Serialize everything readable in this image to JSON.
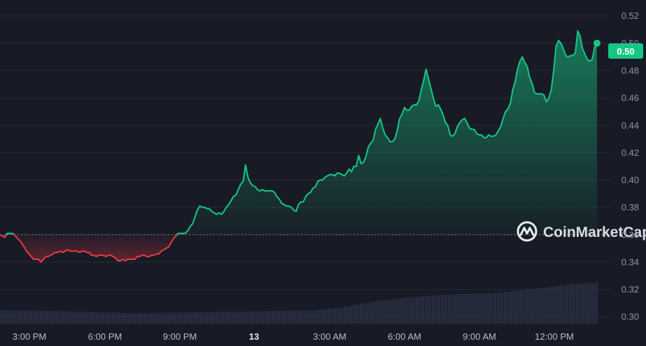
{
  "chart_data": {
    "type": "line",
    "x_ticks": [
      "3:00 PM",
      "6:00 PM",
      "9:00 PM",
      "13",
      "3:00 AM",
      "6:00 AM",
      "9:00 AM",
      "12:00 PM"
    ],
    "x_tick_bold": "13",
    "y_ticks": [
      "0.52",
      "0.50",
      "0.48",
      "0.46",
      "0.44",
      "0.42",
      "0.40",
      "0.38",
      "0.36",
      "0.34",
      "0.32",
      "0.30"
    ],
    "ylim": [
      0.295,
      0.527
    ],
    "baseline": 0.36,
    "current_price": "0.50",
    "watermark": "CoinMarketCap",
    "colors": {
      "up": "#16c784",
      "down": "#ea3943",
      "background": "#181b26",
      "grid": "#262a36",
      "volume": "#2b3346"
    },
    "series": [
      {
        "values": [
          0.36,
          0.359,
          0.358,
          0.361,
          0.361,
          0.361,
          0.36,
          0.358,
          0.356,
          0.354,
          0.351,
          0.348,
          0.346,
          0.344,
          0.342,
          0.342,
          0.342,
          0.34,
          0.342,
          0.344,
          0.344,
          0.345,
          0.346,
          0.347,
          0.347,
          0.348,
          0.347,
          0.348,
          0.349,
          0.348,
          0.348,
          0.348,
          0.348,
          0.347,
          0.348,
          0.348,
          0.347,
          0.347,
          0.345,
          0.345,
          0.344,
          0.345,
          0.345,
          0.345,
          0.344,
          0.345,
          0.345,
          0.344,
          0.343,
          0.341,
          0.341,
          0.342,
          0.341,
          0.342,
          0.342,
          0.342,
          0.342,
          0.344,
          0.344,
          0.345,
          0.345,
          0.344,
          0.344,
          0.345,
          0.345,
          0.346,
          0.346,
          0.348,
          0.349,
          0.35,
          0.351,
          0.354,
          0.357,
          0.359,
          0.361,
          0.361,
          0.361,
          0.361,
          0.363,
          0.366,
          0.368,
          0.373,
          0.378,
          0.381,
          0.38,
          0.38,
          0.379,
          0.379,
          0.377,
          0.376,
          0.375,
          0.376,
          0.375,
          0.377,
          0.38,
          0.382,
          0.385,
          0.388,
          0.389,
          0.393,
          0.397,
          0.399,
          0.411,
          0.402,
          0.398,
          0.396,
          0.395,
          0.393,
          0.392,
          0.393,
          0.392,
          0.392,
          0.392,
          0.392,
          0.391,
          0.388,
          0.386,
          0.383,
          0.382,
          0.381,
          0.381,
          0.38,
          0.378,
          0.377,
          0.382,
          0.384,
          0.384,
          0.388,
          0.39,
          0.391,
          0.394,
          0.395,
          0.399,
          0.4,
          0.4,
          0.402,
          0.403,
          0.404,
          0.404,
          0.403,
          0.405,
          0.405,
          0.404,
          0.403,
          0.405,
          0.408,
          0.406,
          0.41,
          0.41,
          0.418,
          0.412,
          0.413,
          0.417,
          0.424,
          0.427,
          0.429,
          0.437,
          0.441,
          0.445,
          0.438,
          0.433,
          0.431,
          0.428,
          0.428,
          0.43,
          0.436,
          0.445,
          0.448,
          0.453,
          0.451,
          0.451,
          0.454,
          0.455,
          0.455,
          0.458,
          0.466,
          0.473,
          0.481,
          0.474,
          0.467,
          0.46,
          0.454,
          0.455,
          0.452,
          0.448,
          0.442,
          0.44,
          0.433,
          0.432,
          0.434,
          0.439,
          0.442,
          0.444,
          0.445,
          0.442,
          0.438,
          0.437,
          0.437,
          0.434,
          0.433,
          0.433,
          0.431,
          0.431,
          0.433,
          0.432,
          0.432,
          0.433,
          0.436,
          0.439,
          0.445,
          0.45,
          0.452,
          0.456,
          0.466,
          0.472,
          0.481,
          0.487,
          0.49,
          0.486,
          0.483,
          0.475,
          0.471,
          0.464,
          0.463,
          0.463,
          0.463,
          0.462,
          0.457,
          0.46,
          0.466,
          0.48,
          0.498,
          0.502,
          0.5,
          0.496,
          0.491,
          0.49,
          0.491,
          0.491,
          0.493,
          0.509,
          0.505,
          0.496,
          0.492,
          0.488,
          0.487,
          0.488,
          0.497,
          0.5
        ]
      }
    ],
    "volume": [
      0.305,
      0.305,
      0.305,
      0.3048,
      0.3048,
      0.3047,
      0.3047,
      0.3046,
      0.3046,
      0.3046,
      0.3045,
      0.3045,
      0.3045,
      0.3045,
      0.3044,
      0.3044,
      0.3044,
      0.3044,
      0.3043,
      0.3043,
      0.3043,
      0.3043,
      0.3042,
      0.3042,
      0.3042,
      0.3041,
      0.3041,
      0.3041,
      0.304,
      0.304,
      0.304,
      0.3039,
      0.3039,
      0.3039,
      0.3038,
      0.3038,
      0.3037,
      0.3037,
      0.3036,
      0.3036,
      0.3035,
      0.3035,
      0.3034,
      0.3034,
      0.3033,
      0.3033,
      0.3032,
      0.3032,
      0.3031,
      0.3031,
      0.303,
      0.303,
      0.3029,
      0.3029,
      0.3028,
      0.3028,
      0.3027,
      0.3027,
      0.3026,
      0.3026,
      0.3026,
      0.3026,
      0.3027,
      0.3027,
      0.3027,
      0.3027,
      0.3028,
      0.3028,
      0.3028,
      0.3028,
      0.3029,
      0.3029,
      0.3029,
      0.3029,
      0.303,
      0.303,
      0.303,
      0.303,
      0.3031,
      0.3031,
      0.3031,
      0.3031,
      0.3032,
      0.3032,
      0.3032,
      0.3032,
      0.3033,
      0.3033,
      0.3033,
      0.3033,
      0.3034,
      0.3034,
      0.3034,
      0.3034,
      0.3035,
      0.3035,
      0.3035,
      0.3035,
      0.3036,
      0.3036,
      0.3036,
      0.3036,
      0.3037,
      0.3037,
      0.3037,
      0.3037,
      0.3038,
      0.3038,
      0.3038,
      0.3038,
      0.3039,
      0.3039,
      0.3039,
      0.3039,
      0.304,
      0.304,
      0.304,
      0.304,
      0.3041,
      0.3041,
      0.3041,
      0.3041,
      0.3042,
      0.3042,
      0.3042,
      0.3042,
      0.3043,
      0.3043,
      0.3043,
      0.3043,
      0.3044,
      0.3044,
      0.3045,
      0.3045,
      0.3046,
      0.3046,
      0.3047,
      0.3047,
      0.3048,
      0.3048,
      0.305,
      0.3051,
      0.3052,
      0.3053,
      0.3055,
      0.3056,
      0.3058,
      0.3059,
      0.3061,
      0.3063,
      0.3065,
      0.3068,
      0.307,
      0.3073,
      0.3076,
      0.3079,
      0.3082,
      0.3085,
      0.3088,
      0.3091,
      0.3094,
      0.3097,
      0.31,
      0.3103,
      0.3106,
      0.3109,
      0.3112,
      0.3114,
      0.3116,
      0.3118,
      0.312,
      0.3122,
      0.3124,
      0.3126,
      0.3128,
      0.313,
      0.3132,
      0.3134,
      0.3136,
      0.3138,
      0.314,
      0.3141,
      0.3142,
      0.3144,
      0.3145,
      0.3146,
      0.3148,
      0.3149,
      0.315,
      0.3151,
      0.3152,
      0.3153,
      0.3154,
      0.3155,
      0.3156,
      0.3157,
      0.3158,
      0.3159,
      0.316,
      0.3161,
      0.3162,
      0.3163,
      0.3164,
      0.3165,
      0.3166,
      0.3166,
      0.3167,
      0.3167,
      0.3168,
      0.3168,
      0.3169,
      0.3169,
      0.317,
      0.317,
      0.3171,
      0.3171,
      0.3172,
      0.3172,
      0.3173,
      0.3173,
      0.3174,
      0.3175,
      0.3176,
      0.3177,
      0.3178,
      0.318,
      0.3182,
      0.3184,
      0.3186,
      0.3188,
      0.319,
      0.3192,
      0.3194,
      0.3196,
      0.3198,
      0.32,
      0.3202,
      0.3204,
      0.3206,
      0.3208,
      0.321,
      0.3212,
      0.3214,
      0.3216,
      0.3218,
      0.322,
      0.3222,
      0.3224,
      0.3226,
      0.3228,
      0.323,
      0.3232,
      0.3234,
      0.3236,
      0.3238,
      0.324,
      0.3241,
      0.3242,
      0.3243,
      0.3244,
      0.3245,
      0.3246,
      0.3247,
      0.3248,
      0.3249,
      0.325
    ]
  }
}
